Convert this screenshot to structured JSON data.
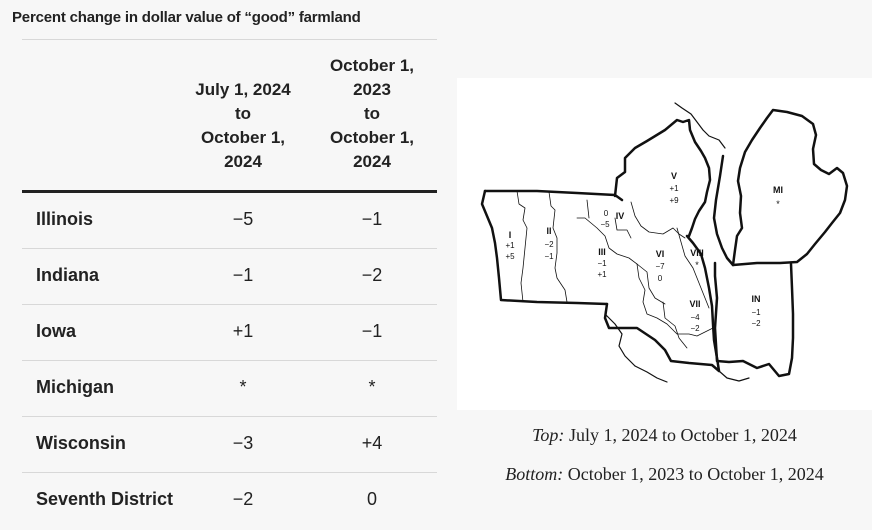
{
  "title": "Percent change in dollar value of “good” farmland",
  "table": {
    "col1": "July 1, 2024\nto\nOctober 1,\n2024",
    "col2": "October 1,\n2023\nto\nOctober 1,\n2024",
    "rows": [
      {
        "state": "Illinois",
        "v1": "−5",
        "v2": "−1"
      },
      {
        "state": "Indiana",
        "v1": "−1",
        "v2": "−2"
      },
      {
        "state": "Iowa",
        "v1": "+1",
        "v2": "−1"
      },
      {
        "state": "Michigan",
        "v1": "*",
        "v2": "*"
      },
      {
        "state": "Wisconsin",
        "v1": "−3",
        "v2": "+4"
      },
      {
        "state": "Seventh District",
        "v1": "−2",
        "v2": "0"
      }
    ]
  },
  "map": {
    "regions": [
      {
        "id": "I",
        "top": "+1",
        "bottom": "+5"
      },
      {
        "id": "II",
        "top": "−2",
        "bottom": "−1"
      },
      {
        "id": "III",
        "top": "−1",
        "bottom": "+1"
      },
      {
        "id": "IV",
        "top": "0",
        "bottom": "−5"
      },
      {
        "id": "V",
        "top": "+1",
        "bottom": "+9"
      },
      {
        "id": "VI",
        "top": "−7",
        "bottom": "0"
      },
      {
        "id": "VII",
        "top": "−4",
        "bottom": "−2"
      },
      {
        "id": "VIII",
        "top": "*",
        "bottom": ""
      },
      {
        "id": "MI",
        "top": "*",
        "bottom": ""
      },
      {
        "id": "IN",
        "top": "−1",
        "bottom": "−2"
      }
    ]
  },
  "captions": {
    "top_label": "Top:",
    "top_text": " July 1, 2024 to October 1, 2024",
    "bottom_label": "Bottom:",
    "bottom_text": " October 1, 2023 to October 1, 2024"
  }
}
